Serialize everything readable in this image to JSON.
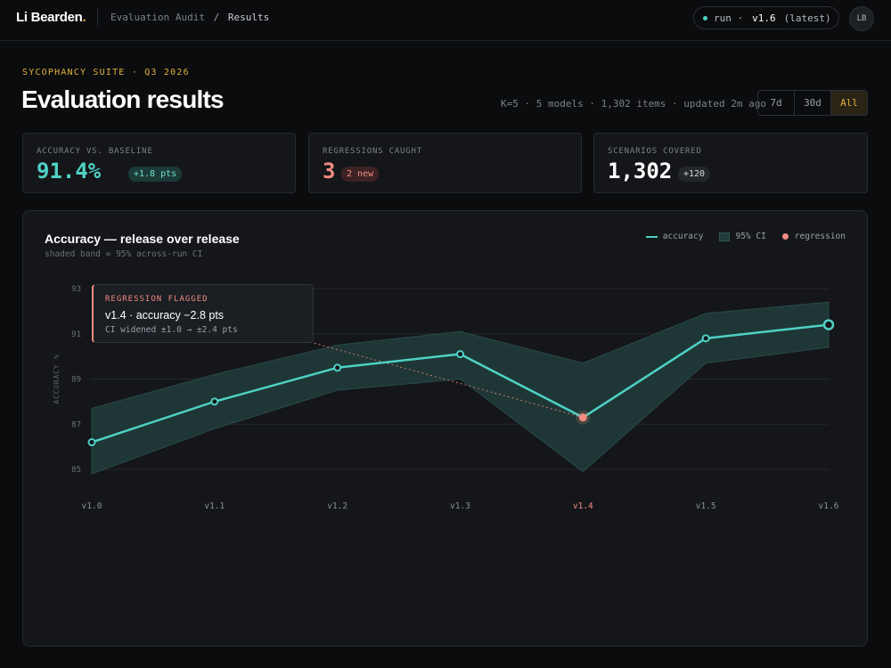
{
  "app": {
    "brand": "Li Bearden",
    "brand_dot": ".",
    "breadcrumb_parent": "Evaluation Audit",
    "breadcrumb_sep": "/",
    "breadcrumb_current": "Results"
  },
  "run": {
    "label": "run ·",
    "version": "v1.6",
    "tag": "(latest)"
  },
  "avatar": "LB",
  "header": {
    "eyebrow": "SYCOPHANCY SUITE · Q3 2026",
    "title": "Evaluation results",
    "meta": "K=5 · 5 models · 1,302 items · updated 2m ago",
    "ranges": [
      "7d",
      "30d",
      "All"
    ],
    "active_range": "All"
  },
  "stats": [
    {
      "label": "ACCURACY VS. BASELINE",
      "value": "91.4%",
      "badge": "+1.8 pts",
      "value_color": "#4fd1c5"
    },
    {
      "label": "REGRESSIONS CAUGHT",
      "value": "3",
      "badge": "2 new",
      "value_color": "#f28b82"
    },
    {
      "label": "SCENARIOS COVERED",
      "value": "1,302",
      "badge": "+120",
      "value_color": "#ffffff"
    }
  ],
  "colors": {
    "accent": "#4fd1c5",
    "regression": "#f28b82",
    "highlight": "#e0b13c",
    "band": "#1f3b3a"
  },
  "chart_data": {
    "type": "line",
    "title": "Accuracy — release over release",
    "subtitle": "shaded band = 95% across-run CI",
    "ylabel": "ACCURACY %",
    "xlabel": "",
    "ylim": [
      85,
      93
    ],
    "yticks": [
      85,
      87,
      89,
      91,
      93
    ],
    "categories": [
      "v1.0",
      "v1.1",
      "v1.2",
      "v1.3",
      "v1.4",
      "v1.5",
      "v1.6"
    ],
    "series": [
      {
        "name": "accuracy",
        "values": [
          86.2,
          88.0,
          89.5,
          90.1,
          87.3,
          90.8,
          91.4
        ]
      }
    ],
    "ci": {
      "name": "95% CI",
      "lower": [
        84.8,
        86.8,
        88.5,
        89.0,
        84.9,
        89.7,
        90.4
      ],
      "upper": [
        87.7,
        89.2,
        90.5,
        91.1,
        89.7,
        91.9,
        92.4
      ]
    },
    "regression_index": 4,
    "legend": [
      "accuracy",
      "95% CI",
      "regression"
    ],
    "legend_position": "top-right",
    "grid": true,
    "annotation": {
      "heading": "REGRESSION FLAGGED",
      "title": "v1.4 · accuracy −2.8 pts",
      "detail": "CI widened ±1.0 → ±2.4 pts"
    }
  }
}
